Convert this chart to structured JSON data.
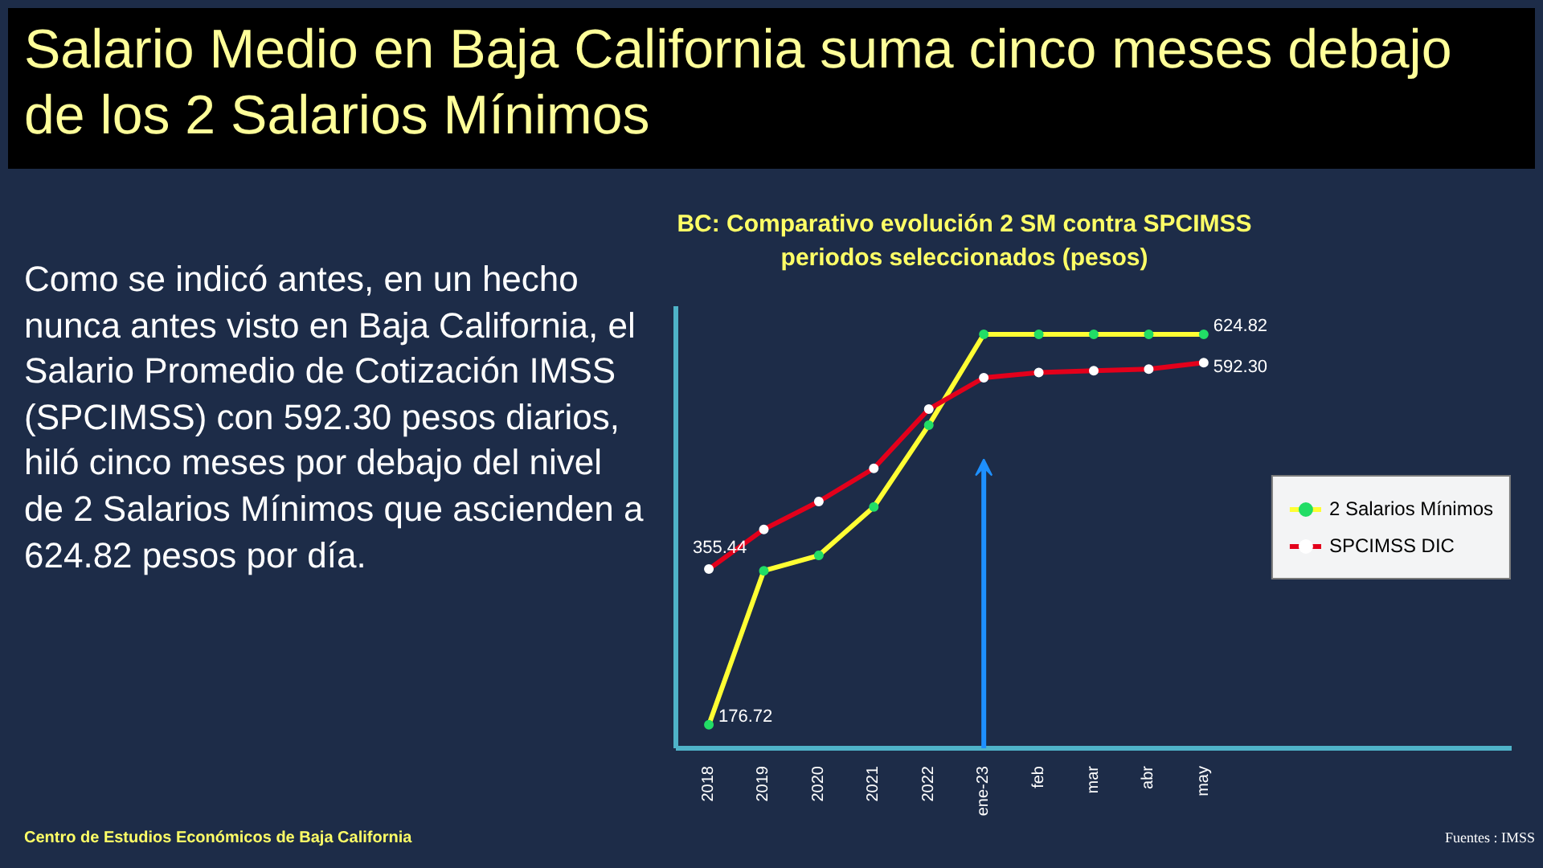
{
  "chart_data": {
    "type": "line",
    "title": "Salario Medio en Baja California suma cinco meses debajo de los 2 Salarios Mínimos",
    "subtitle": "BC: Comparativo evolución 2 SM contra SPCIMSS periodos seleccionados (pesos)",
    "categories": [
      "2018",
      "2019",
      "2020",
      "2021",
      "2022",
      "ene-23",
      "feb",
      "mar",
      "abr",
      "may"
    ],
    "series": [
      {
        "name": "2 Salarios Mínimos",
        "color": "#ffff33",
        "values": [
          176.72,
          353.44,
          371.12,
          426.78,
          520.68,
          624.82,
          624.82,
          624.82,
          624.82,
          624.82
        ],
        "value_labels": [
          "176.72",
          null,
          null,
          null,
          null,
          null,
          null,
          null,
          null,
          "624.82"
        ]
      },
      {
        "name": "SPCIMSS DIC",
        "color": "#e3001b",
        "values": [
          355.44,
          401,
          433,
          471,
          539,
          575,
          581,
          583,
          585,
          592.3
        ],
        "value_labels": [
          "355.44",
          null,
          null,
          null,
          null,
          null,
          null,
          null,
          null,
          "592.30"
        ]
      }
    ],
    "marker": "circle",
    "legend": "right",
    "tick_labels": "x",
    "grid": false,
    "annotations": [
      "Como se indicó antes, en un hecho nunca antes visto en Baja California, el Salario Promedio de Cotización IMSS (SPCIMSS) con 592.30 pesos diarios, hiló cinco meses por debajo del nivel de 2 Salarios Mínimos que ascienden a 624.82 pesos por día.",
      "Centro de Estudios Económicos de Baja California",
      "Fuentes : IMSS"
    ]
  }
}
